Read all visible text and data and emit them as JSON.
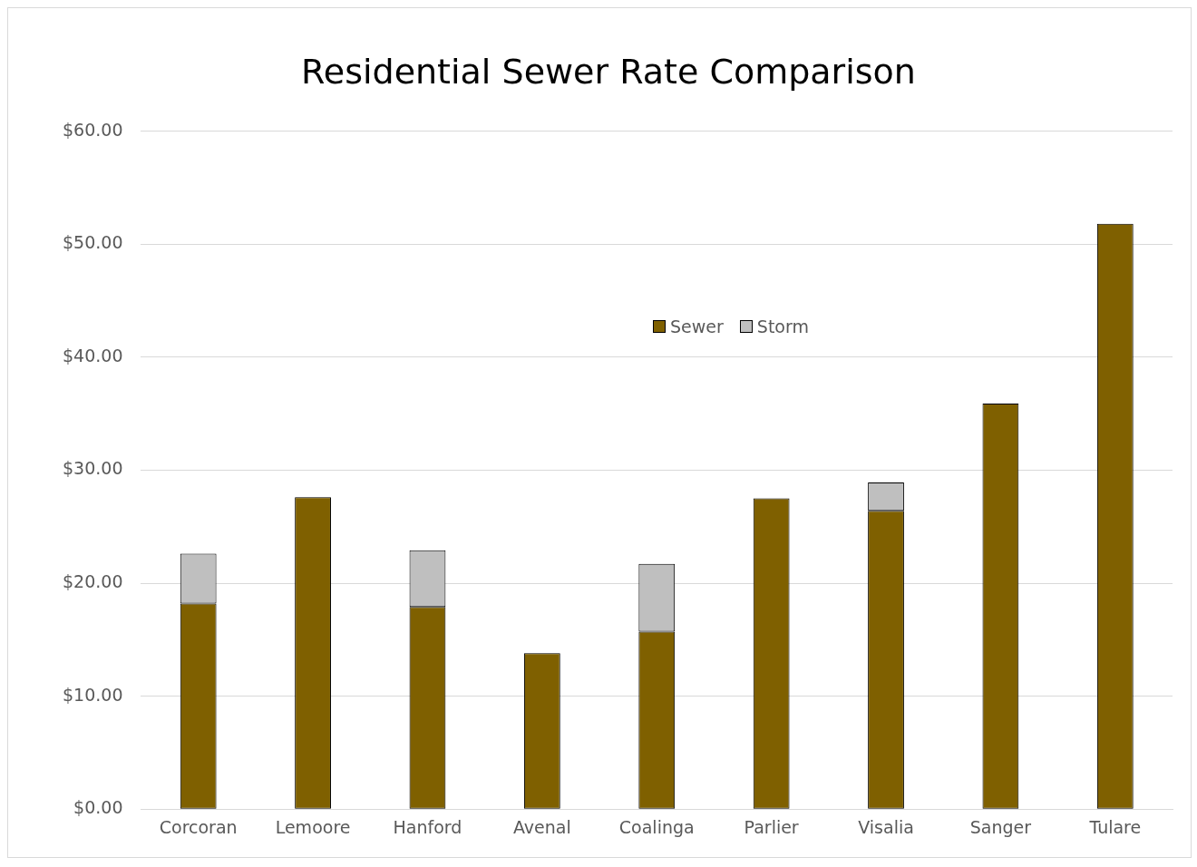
{
  "chart_data": {
    "type": "bar",
    "title": "Residential Sewer Rate Comparison",
    "categories": [
      "Corcoran",
      "Lemoore",
      "Hanford",
      "Avenal",
      "Coalinga",
      "Parlier",
      "Visalia",
      "Sanger",
      "Tulare"
    ],
    "series": [
      {
        "name": "Sewer",
        "color": "#7f6000",
        "values": [
          18.2,
          27.6,
          17.9,
          13.8,
          15.7,
          27.5,
          26.4,
          35.9,
          51.8
        ]
      },
      {
        "name": "Storm",
        "color": "#bfbfbf",
        "values": [
          4.4,
          0,
          5.0,
          0,
          6.0,
          0,
          2.5,
          0,
          0
        ]
      }
    ],
    "stacked": true,
    "ylim": [
      0,
      60
    ],
    "yticks": [
      {
        "value": 0,
        "label": "$0.00"
      },
      {
        "value": 10,
        "label": "$10.00"
      },
      {
        "value": 20,
        "label": "$20.00"
      },
      {
        "value": 30,
        "label": "$30.00"
      },
      {
        "value": 40,
        "label": "$40.00"
      },
      {
        "value": 50,
        "label": "$50.00"
      },
      {
        "value": 60,
        "label": "$60.00"
      }
    ],
    "grid": "y",
    "legend": "top"
  }
}
